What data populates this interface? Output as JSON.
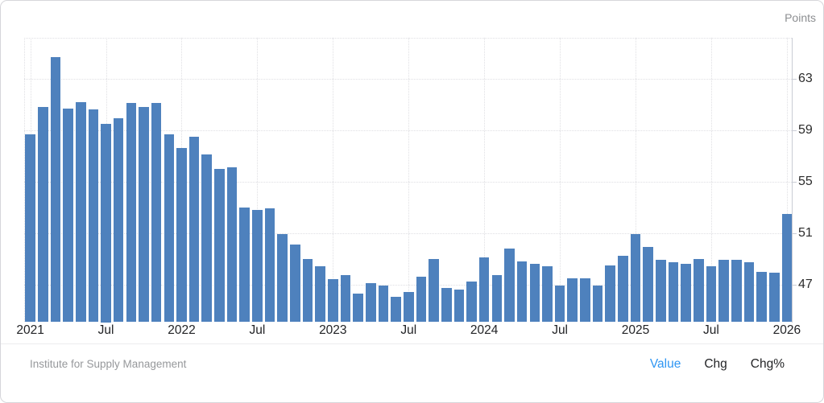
{
  "header": {
    "units_label": "Points"
  },
  "footer": {
    "source": "Institute for Supply Management",
    "tabs": [
      {
        "label": "Value",
        "active": true
      },
      {
        "label": "Chg",
        "active": false
      },
      {
        "label": "Chg%",
        "active": false
      }
    ]
  },
  "colors": {
    "bar": "#4e81bd",
    "grid": "#dfdfe3",
    "axis_line": "#c9ccd4",
    "tick_text": "#2b2b2b",
    "x_tick_text": "#222326",
    "muted_text": "#96989b",
    "active_tab_blue": "#2f96f3",
    "frame_border": "#d6d6da"
  },
  "chart_data": {
    "type": "bar",
    "title": "",
    "xlabel": "",
    "ylabel": "Points",
    "legend": "none",
    "grid": "dotted horizontal and vertical gridlines at axis ticks",
    "y_axis_side": "right",
    "y_ticks": [
      47,
      51,
      55,
      59,
      63
    ],
    "ylim": [
      44.1,
      66.3
    ],
    "x_tick_labels": [
      "2021",
      "Jul",
      "2022",
      "Jul",
      "2023",
      "Jul",
      "2024",
      "Jul",
      "2025",
      "Jul",
      "2026"
    ],
    "x_tick_indices": [
      0,
      6,
      12,
      18,
      24,
      30,
      36,
      42,
      48,
      54,
      60
    ],
    "x": [
      "2021-01",
      "2021-02",
      "2021-03",
      "2021-04",
      "2021-05",
      "2021-06",
      "2021-07",
      "2021-08",
      "2021-09",
      "2021-10",
      "2021-11",
      "2021-12",
      "2022-01",
      "2022-02",
      "2022-03",
      "2022-04",
      "2022-05",
      "2022-06",
      "2022-07",
      "2022-08",
      "2022-09",
      "2022-10",
      "2022-11",
      "2022-12",
      "2023-01",
      "2023-02",
      "2023-03",
      "2023-04",
      "2023-05",
      "2023-06",
      "2023-07",
      "2023-08",
      "2023-09",
      "2023-10",
      "2023-11",
      "2023-12",
      "2024-01",
      "2024-02",
      "2024-03",
      "2024-04",
      "2024-05",
      "2024-06",
      "2024-07",
      "2024-08",
      "2024-09",
      "2024-10",
      "2024-11",
      "2024-12",
      "2025-01",
      "2025-02",
      "2025-03",
      "2025-04",
      "2025-05",
      "2025-06",
      "2025-07",
      "2025-08",
      "2025-09",
      "2025-10",
      "2025-11",
      "2025-12",
      "2026-01"
    ],
    "values": [
      58.7,
      60.8,
      64.7,
      60.7,
      61.2,
      60.6,
      59.5,
      59.9,
      61.1,
      60.8,
      61.1,
      58.7,
      57.6,
      58.5,
      57.1,
      56.0,
      56.1,
      53.0,
      52.8,
      52.9,
      50.9,
      50.1,
      49.0,
      48.4,
      47.4,
      47.7,
      46.3,
      47.1,
      46.9,
      46.0,
      46.4,
      47.6,
      49.0,
      46.7,
      46.6,
      47.2,
      49.1,
      47.7,
      49.8,
      48.8,
      48.6,
      48.4,
      46.9,
      47.5,
      47.5,
      46.9,
      48.5,
      49.2,
      50.9,
      49.9,
      48.9,
      48.7,
      48.6,
      49.0,
      48.4,
      48.9,
      48.9,
      48.7,
      48.0,
      47.9,
      52.5
    ]
  }
}
